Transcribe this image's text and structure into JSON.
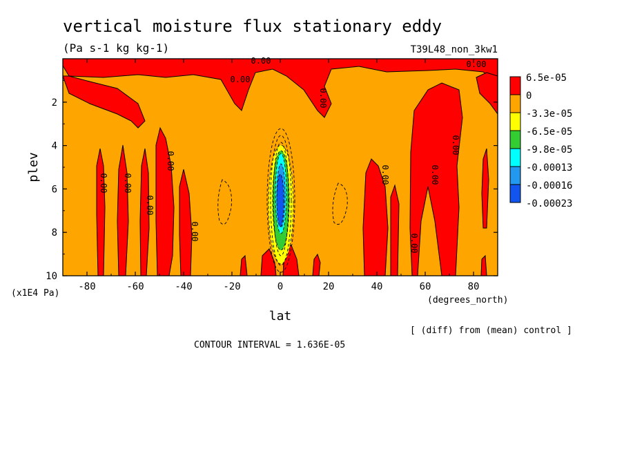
{
  "chart_data": {
    "type": "heatmap",
    "title": "vertical moisture flux stationary eddy",
    "units": "(Pa s-1 kg kg-1)",
    "run_label": "T39L48_non_3kw1",
    "xlabel": "lat",
    "ylabel": "plev",
    "x_unit": "(degrees_north)",
    "y_unit": "(x1E4 Pa)",
    "xlim": [
      -90,
      90
    ],
    "ylim": [
      0,
      10
    ],
    "x_ticks": [
      -80,
      -60,
      -40,
      -20,
      0,
      20,
      40,
      60,
      80
    ],
    "y_ticks": [
      2,
      4,
      6,
      8,
      10
    ],
    "contour_interval": "CONTOUR INTERVAL = 1.636E-05",
    "note": "[ (diff) from (mean) control ]",
    "contour_labels": [
      "0.00",
      "0.00",
      "0.00",
      "0.00",
      "0.00",
      "0.00",
      "0.00",
      "0.00",
      "0.00",
      "0.00",
      "0.00",
      "0.00",
      "0.00"
    ],
    "legend": {
      "position": "right",
      "levels": [
        "6.5e-05",
        "0",
        "-3.3e-05",
        "-6.5e-05",
        "-9.8e-05",
        "-0.00013",
        "-0.00016",
        "-0.00023"
      ],
      "colors": [
        "#ff0000",
        "#ffa500",
        "#ffff00",
        "#33cc33",
        "#00ffff",
        "#2299ee",
        "#1155ee"
      ]
    },
    "colors": {
      "positive": "#ff0000",
      "background": "#ffa500",
      "neg_1": "#ffff00",
      "neg_2": "#33cc33",
      "neg_3": "#00ffff",
      "neg_4": "#2299ee",
      "neg_5": "#1155ee"
    }
  }
}
